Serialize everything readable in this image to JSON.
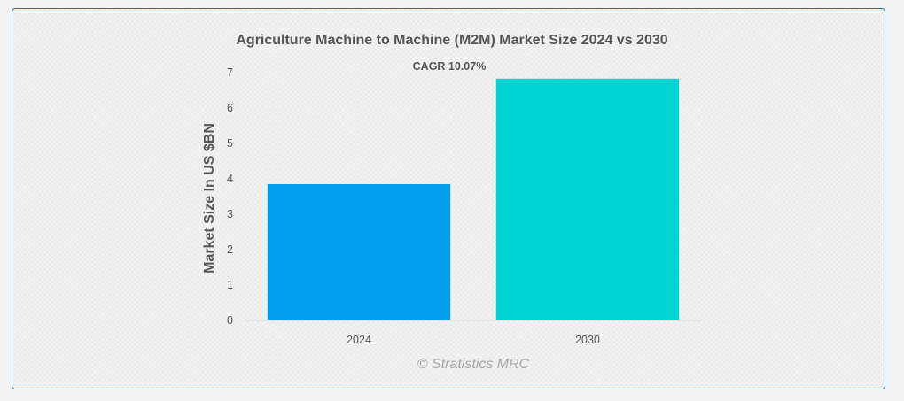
{
  "chart_data": {
    "type": "bar",
    "title": "Agriculture Machine to Machine (M2M) Market Size 2024 vs 2030",
    "annotation": "CAGR 10.07%",
    "ylabel": "Market Size In US $BN",
    "xlabel": "",
    "categories": [
      "2024",
      "2030"
    ],
    "values": [
      3.85,
      6.83
    ],
    "colors": [
      "#03a0ee",
      "#00d4d4"
    ],
    "ylim": [
      0,
      7
    ],
    "yticks": [
      "0",
      "1",
      "2",
      "3",
      "4",
      "5",
      "6",
      "7"
    ],
    "grid": false,
    "legend": "none"
  },
  "credit": "© Stratistics MRC"
}
